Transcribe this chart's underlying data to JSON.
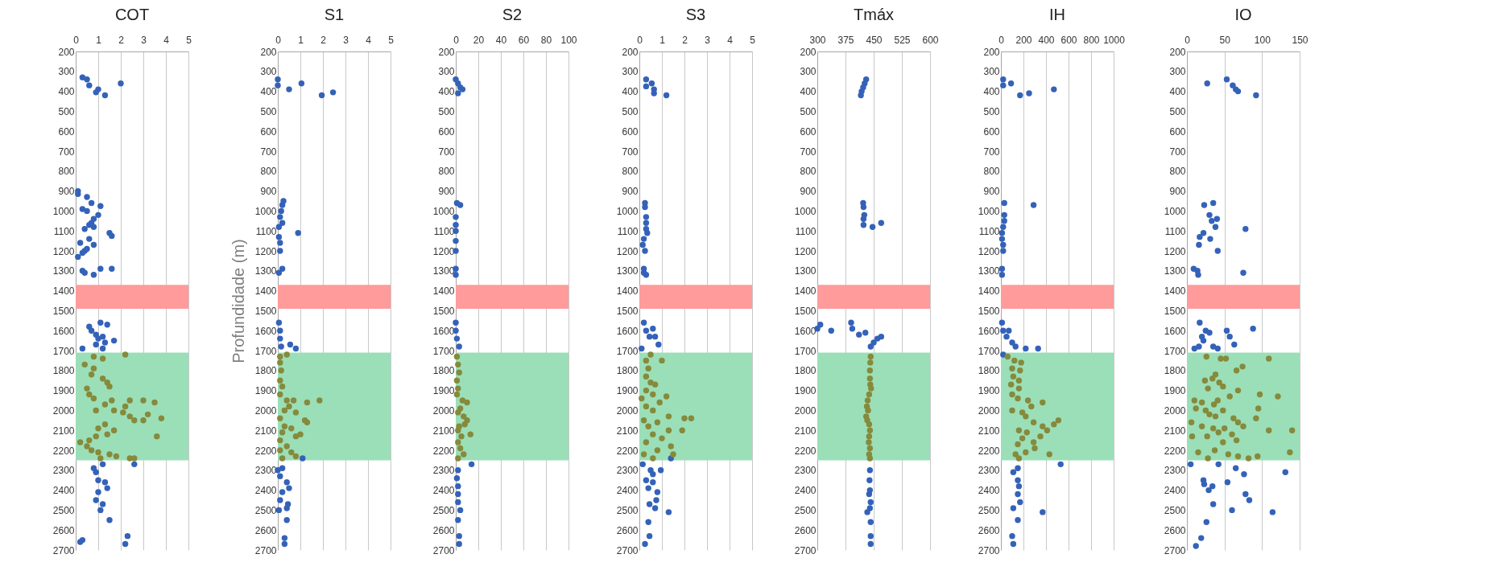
{
  "chart_data": [
    {
      "type": "scatter",
      "title": "COT",
      "xlim": [
        0,
        5
      ],
      "xticks": [
        0,
        1,
        2,
        3,
        4,
        5
      ],
      "ylim": [
        2700,
        200
      ],
      "yticks": [
        200,
        300,
        400,
        500,
        600,
        700,
        800,
        900,
        1000,
        1100,
        1200,
        1300,
        1400,
        1500,
        1600,
        1700,
        1800,
        1900,
        2000,
        2100,
        2200,
        2300,
        2400,
        2500,
        2600,
        2700
      ],
      "grid": "x",
      "marker": "circle",
      "bands": [
        {
          "axis": "y",
          "from": 1370,
          "to": 1490,
          "color": "#ff9b9b"
        },
        {
          "axis": "y",
          "from": 1710,
          "to": 2250,
          "color": "#9bdfb8"
        }
      ],
      "series": [
        {
          "color": "#3462b8",
          "x": [
            0.3,
            0.5,
            0.6,
            2.0,
            1.0,
            0.9,
            1.3,
            0.1,
            0.1,
            0.5,
            0.7,
            1.1,
            0.3,
            0.5,
            1.0,
            0.8,
            0.7,
            0.6,
            0.8,
            0.4,
            1.5,
            1.6,
            0.6,
            0.2,
            0.8,
            0.5,
            0.4,
            0.3,
            0.1,
            0.3,
            0.4,
            1.1,
            1.6,
            0.8,
            1.1,
            1.4,
            0.6,
            0.7,
            0.9,
            1.2,
            1.0,
            1.3,
            1.7,
            0.9,
            0.3,
            1.2,
            1.2,
            2.6,
            0.8,
            0.9,
            1.0,
            1.3,
            1.4,
            1.0,
            0.9,
            1.2,
            1.1,
            1.5,
            0.3,
            0.2,
            2.3,
            2.2
          ],
          "values": [
            330,
            340,
            370,
            360,
            390,
            405,
            420,
            900,
            915,
            930,
            960,
            975,
            990,
            1000,
            1020,
            1040,
            1060,
            1070,
            1080,
            1090,
            1110,
            1125,
            1140,
            1160,
            1170,
            1190,
            1200,
            1210,
            1230,
            1300,
            1310,
            1290,
            1290,
            1320,
            1560,
            1570,
            1580,
            1600,
            1620,
            1630,
            1640,
            1660,
            1650,
            1670,
            1690,
            1690,
            2270,
            2270,
            2290,
            2310,
            2350,
            2360,
            2390,
            2410,
            2450,
            2470,
            2500,
            2550,
            2650,
            2660,
            2630,
            2670
          ]
        },
        {
          "color": "#858a3c",
          "x": [
            0.8,
            2.2,
            1.2,
            0.4,
            0.8,
            0.7,
            1.2,
            1.4,
            1.5,
            0.5,
            0.6,
            0.8,
            1.6,
            2.4,
            3.0,
            3.5,
            1.3,
            2.2,
            0.9,
            1.7,
            2.1,
            2.4,
            3.2,
            3.8,
            3.0,
            2.6,
            1.3,
            1.0,
            1.7,
            1.4,
            3.6,
            0.9,
            0.6,
            0.2,
            0.5,
            0.7,
            1.0,
            1.5,
            1.8,
            2.4,
            2.6,
            1.1
          ],
          "values": [
            1730,
            1720,
            1740,
            1770,
            1790,
            1820,
            1840,
            1860,
            1880,
            1890,
            1920,
            1940,
            1950,
            1950,
            1950,
            1960,
            1970,
            1980,
            2000,
            2000,
            2010,
            2030,
            2020,
            2040,
            2050,
            2050,
            2070,
            2090,
            2100,
            2120,
            2130,
            2130,
            2150,
            2160,
            2180,
            2200,
            2210,
            2220,
            2230,
            2240,
            2240,
            2240
          ]
        }
      ]
    },
    {
      "type": "scatter",
      "title": "S1",
      "ylabel": "Profundidade (m)",
      "xlim": [
        0,
        5
      ],
      "xticks": [
        0,
        1,
        2,
        3,
        4,
        5
      ],
      "ylim": [
        2700,
        200
      ],
      "yticks": [
        200,
        300,
        400,
        500,
        600,
        700,
        800,
        900,
        1000,
        1100,
        1200,
        1300,
        1400,
        1500,
        1600,
        1700,
        1800,
        1900,
        2000,
        2100,
        2200,
        2300,
        2400,
        2500,
        2600,
        2700
      ],
      "grid": "x",
      "marker": "circle",
      "bands": [
        {
          "axis": "y",
          "from": 1370,
          "to": 1490,
          "color": "#ff9b9b"
        },
        {
          "axis": "y",
          "from": 1710,
          "to": 2250,
          "color": "#9bdfb8"
        }
      ],
      "series": [
        {
          "color": "#3462b8",
          "x": [
            0,
            0,
            1.05,
            0.5,
            1.95,
            2.45,
            0.25,
            0.2,
            0.15,
            0.1,
            0.2,
            0.05,
            0.9,
            0.05,
            0.1,
            0.1,
            0.2,
            0.05,
            0.05,
            0.1,
            0.1,
            0.15,
            0.55,
            0.8,
            0,
            0.1,
            0.2,
            0.4,
            0.5,
            0.2,
            0.1,
            0.45,
            0.4,
            0.05,
            0.4,
            0.3,
            0.3,
            1.1
          ],
          "values": [
            340,
            370,
            360,
            390,
            420,
            405,
            950,
            970,
            1000,
            1030,
            1060,
            1080,
            1110,
            1130,
            1160,
            1200,
            1290,
            1310,
            1560,
            1600,
            1640,
            1680,
            1670,
            1690,
            2300,
            2330,
            2290,
            2360,
            2390,
            2410,
            2450,
            2470,
            2490,
            2500,
            2550,
            2640,
            2670,
            2240
          ]
        },
        {
          "color": "#858a3c",
          "x": [
            0.1,
            0.4,
            0.1,
            0.15,
            0.1,
            0.2,
            0.1,
            0.4,
            0.7,
            1.3,
            1.85,
            0.5,
            0.8,
            0.3,
            0.1,
            1.2,
            1.3,
            0.3,
            0.6,
            0.2,
            0.8,
            1.0,
            0.1,
            0.4,
            0.6,
            0.8,
            0.2,
            0.1
          ],
          "values": [
            1730,
            1720,
            1760,
            1800,
            1850,
            1880,
            1920,
            1950,
            1950,
            1960,
            1950,
            1980,
            2010,
            2000,
            2040,
            2050,
            2060,
            2080,
            2090,
            2110,
            2130,
            2120,
            2150,
            2180,
            2210,
            2230,
            2240,
            2200
          ]
        }
      ]
    },
    {
      "type": "scatter",
      "title": "S2",
      "xlim": [
        0,
        100
      ],
      "xticks": [
        0,
        20,
        40,
        60,
        80,
        100
      ],
      "ylim": [
        2700,
        200
      ],
      "yticks": [
        200,
        300,
        400,
        500,
        600,
        700,
        800,
        900,
        1000,
        1100,
        1200,
        1300,
        1400,
        1500,
        1600,
        1700,
        1800,
        1900,
        2000,
        2100,
        2200,
        2300,
        2400,
        2500,
        2600,
        2700
      ],
      "grid": "x",
      "marker": "circle",
      "bands": [
        {
          "axis": "y",
          "from": 1370,
          "to": 1490,
          "color": "#ff9b9b"
        },
        {
          "axis": "y",
          "from": 1710,
          "to": 2250,
          "color": "#9bdfb8"
        }
      ],
      "series": [
        {
          "color": "#3462b8",
          "x": [
            0,
            2,
            4,
            6,
            2,
            1,
            4,
            0,
            0,
            0,
            0,
            0,
            0,
            0,
            0,
            0,
            1,
            3,
            14,
            2,
            1,
            2,
            2,
            2,
            4,
            2,
            3,
            3
          ],
          "values": [
            340,
            360,
            380,
            390,
            410,
            960,
            970,
            1030,
            1070,
            1100,
            1150,
            1200,
            1290,
            1320,
            1560,
            1600,
            1640,
            1680,
            2270,
            2300,
            2340,
            2380,
            2420,
            2460,
            2500,
            2550,
            2630,
            2670
          ]
        },
        {
          "color": "#858a3c",
          "x": [
            1,
            2,
            3,
            1,
            2,
            1,
            6,
            10,
            4,
            2,
            7,
            10,
            8,
            3,
            2,
            13,
            5,
            2,
            4,
            7,
            2
          ],
          "values": [
            1730,
            1770,
            1810,
            1850,
            1890,
            1920,
            1950,
            1960,
            1990,
            2010,
            2030,
            2050,
            2070,
            2080,
            2100,
            2120,
            2130,
            2160,
            2190,
            2220,
            2240
          ]
        }
      ]
    },
    {
      "type": "scatter",
      "title": "S3",
      "xlim": [
        0,
        5
      ],
      "xticks": [
        0,
        1,
        2,
        3,
        4,
        5
      ],
      "ylim": [
        2700,
        200
      ],
      "yticks": [
        200,
        300,
        400,
        500,
        600,
        700,
        800,
        900,
        1000,
        1100,
        1200,
        1300,
        1400,
        1500,
        1600,
        1700,
        1800,
        1900,
        2000,
        2100,
        2200,
        2300,
        2400,
        2500,
        2600,
        2700
      ],
      "grid": "x",
      "marker": "circle",
      "bands": [
        {
          "axis": "y",
          "from": 1370,
          "to": 1490,
          "color": "#ff9b9b"
        },
        {
          "axis": "y",
          "from": 1710,
          "to": 2250,
          "color": "#9bdfb8"
        }
      ],
      "series": [
        {
          "color": "#3462b8",
          "x": [
            0.3,
            0.55,
            0.3,
            0.65,
            0.65,
            1.2,
            0.25,
            0.25,
            0.3,
            0.3,
            0.3,
            0.35,
            0.2,
            0.15,
            0.25,
            0.2,
            0.3,
            0.2,
            0.2,
            0.3,
            0.6,
            0.45,
            0.7,
            0.85,
            0.1,
            0.15,
            0.5,
            0.6,
            0.95,
            0.3,
            0.6,
            0.4,
            0.8,
            0.75,
            0.45,
            0.7,
            1.3,
            0.4,
            0.45,
            0.25,
            1.4
          ],
          "values": [
            340,
            360,
            375,
            390,
            410,
            420,
            960,
            980,
            1030,
            1060,
            1090,
            1110,
            1140,
            1170,
            1200,
            1290,
            1320,
            1310,
            1560,
            1600,
            1590,
            1630,
            1630,
            1670,
            1690,
            2270,
            2300,
            2320,
            2300,
            2350,
            2360,
            2390,
            2410,
            2450,
            2470,
            2490,
            2510,
            2560,
            2630,
            2670,
            2240
          ]
        },
        {
          "color": "#858a3c",
          "x": [
            0.5,
            0.3,
            1.0,
            0.4,
            0.3,
            0.5,
            0.7,
            0.3,
            0.6,
            1.2,
            0.1,
            0.9,
            0.3,
            0.6,
            1.3,
            0.2,
            2.0,
            2.3,
            0.8,
            0.4,
            1.3,
            1.9,
            0.6,
            1.0,
            0.3,
            1.4,
            0.8,
            1.5,
            0.2,
            0.6
          ],
          "values": [
            1720,
            1750,
            1750,
            1790,
            1830,
            1860,
            1870,
            1900,
            1920,
            1930,
            1940,
            1960,
            1980,
            2000,
            2030,
            2050,
            2040,
            2040,
            2060,
            2080,
            2100,
            2100,
            2120,
            2140,
            2160,
            2180,
            2200,
            2220,
            2220,
            2240
          ]
        }
      ]
    },
    {
      "type": "scatter",
      "title": "Tmáx",
      "xlim": [
        300,
        600
      ],
      "xticks": [
        300,
        375,
        450,
        525,
        600
      ],
      "ylim": [
        2700,
        200
      ],
      "yticks": [
        200,
        300,
        400,
        500,
        600,
        700,
        800,
        900,
        1000,
        1100,
        1200,
        1300,
        1400,
        1500,
        1600,
        1700,
        1800,
        1900,
        2000,
        2100,
        2200,
        2300,
        2400,
        2500,
        2600,
        2700
      ],
      "grid": "x",
      "marker": "circle",
      "bands": [
        {
          "axis": "y",
          "from": 1370,
          "to": 1490,
          "color": "#ff9b9b"
        },
        {
          "axis": "y",
          "from": 1710,
          "to": 2250,
          "color": "#9bdfb8"
        }
      ],
      "series": [
        {
          "color": "#3462b8",
          "x": [
            430,
            426,
            422,
            418,
            416,
            422,
            423,
            425,
            423,
            423,
            447,
            470,
            300,
            308,
            337,
            390,
            393,
            411,
            428,
            470,
            460,
            450,
            442,
            440,
            439,
            440,
            438,
            442,
            440,
            433,
            442,
            442,
            442
          ],
          "values": [
            340,
            360,
            380,
            400,
            420,
            960,
            980,
            1020,
            1040,
            1070,
            1080,
            1060,
            1590,
            1570,
            1600,
            1560,
            1590,
            1620,
            1610,
            1630,
            1640,
            1660,
            1680,
            2300,
            2350,
            2400,
            2420,
            2460,
            2490,
            2510,
            2560,
            2630,
            2670
          ]
        },
        {
          "color": "#858a3c",
          "x": [
            442,
            441,
            440,
            440,
            441,
            443,
            438,
            434,
            432,
            435,
            430,
            433,
            438,
            440,
            438,
            437,
            440,
            438,
            440
          ],
          "values": [
            1730,
            1760,
            1800,
            1840,
            1870,
            1890,
            1920,
            1950,
            1980,
            2000,
            2030,
            2050,
            2070,
            2100,
            2130,
            2160,
            2190,
            2220,
            2240
          ]
        }
      ]
    },
    {
      "type": "scatter",
      "title": "IH",
      "xlim": [
        0,
        1000
      ],
      "xticks": [
        0,
        200,
        400,
        600,
        800,
        1000
      ],
      "ylim": [
        2700,
        200
      ],
      "yticks": [
        200,
        300,
        400,
        500,
        600,
        700,
        800,
        900,
        1000,
        1100,
        1200,
        1300,
        1400,
        1500,
        1600,
        1700,
        1800,
        1900,
        2000,
        2100,
        2200,
        2300,
        2400,
        2500,
        2600,
        2700
      ],
      "grid": "x",
      "marker": "circle",
      "bands": [
        {
          "axis": "y",
          "from": 1370,
          "to": 1490,
          "color": "#ff9b9b"
        },
        {
          "axis": "y",
          "from": 1710,
          "to": 2250,
          "color": "#9bdfb8"
        }
      ],
      "series": [
        {
          "color": "#3462b8",
          "x": [
            20,
            20,
            90,
            170,
            250,
            470,
            30,
            290,
            30,
            30,
            20,
            10,
            10,
            20,
            20,
            10,
            10,
            10,
            20,
            70,
            50,
            100,
            130,
            220,
            330,
            20,
            530,
            150,
            110,
            150,
            160,
            150,
            170,
            110,
            370,
            150,
            100,
            110
          ],
          "values": [
            340,
            370,
            360,
            420,
            410,
            390,
            960,
            970,
            1020,
            1050,
            1080,
            1110,
            1140,
            1170,
            1200,
            1290,
            1320,
            1560,
            1600,
            1600,
            1630,
            1660,
            1680,
            1690,
            1690,
            1720,
            2270,
            2290,
            2310,
            2350,
            2380,
            2420,
            2460,
            2490,
            2510,
            2550,
            2630,
            2670
          ]
        },
        {
          "color": "#858a3c",
          "x": [
            60,
            120,
            180,
            100,
            170,
            110,
            160,
            90,
            160,
            100,
            150,
            240,
            370,
            270,
            100,
            190,
            220,
            290,
            510,
            470,
            370,
            410,
            160,
            230,
            350,
            190,
            290,
            150,
            300,
            430,
            220,
            130,
            160
          ],
          "values": [
            1730,
            1750,
            1760,
            1790,
            1800,
            1830,
            1850,
            1870,
            1890,
            1920,
            1940,
            1950,
            1960,
            1980,
            2000,
            2010,
            2030,
            2060,
            2050,
            2070,
            2080,
            2100,
            2100,
            2110,
            2130,
            2140,
            2160,
            2170,
            2190,
            2220,
            2210,
            2220,
            2240
          ]
        }
      ]
    },
    {
      "type": "scatter",
      "title": "IO",
      "xlim": [
        0,
        150
      ],
      "xticks": [
        0,
        50,
        100,
        150
      ],
      "ylim": [
        2700,
        200
      ],
      "yticks": [
        200,
        300,
        400,
        500,
        600,
        700,
        800,
        900,
        1000,
        1100,
        1200,
        1300,
        1400,
        1500,
        1600,
        1700,
        1800,
        1900,
        2000,
        2100,
        2200,
        2300,
        2400,
        2500,
        2600,
        2700
      ],
      "grid": "x",
      "marker": "circle",
      "bands": [
        {
          "axis": "y",
          "from": 1370,
          "to": 1490,
          "color": "#ff9b9b"
        },
        {
          "axis": "y",
          "from": 1710,
          "to": 2250,
          "color": "#9bdfb8"
        }
      ],
      "series": [
        {
          "color": "#3462b8",
          "x": [
            27,
            53,
            61,
            65,
            68,
            92,
            23,
            35,
            30,
            33,
            40,
            38,
            78,
            22,
            17,
            31,
            16,
            41,
            9,
            14,
            15,
            75,
            17,
            25,
            30,
            20,
            22,
            16,
            10,
            53,
            57,
            63,
            88,
            35,
            41,
            5,
            42,
            65,
            76,
            131,
            22,
            23,
            34,
            29,
            54,
            78,
            83,
            35,
            60,
            114,
            26,
            19,
            12
          ],
          "values": [
            360,
            340,
            370,
            390,
            400,
            420,
            970,
            960,
            1020,
            1050,
            1040,
            1080,
            1090,
            1110,
            1130,
            1140,
            1170,
            1200,
            1290,
            1300,
            1320,
            1310,
            1560,
            1600,
            1610,
            1630,
            1650,
            1680,
            1690,
            1600,
            1630,
            1670,
            1590,
            1680,
            1690,
            2270,
            2270,
            2290,
            2320,
            2310,
            2350,
            2370,
            2380,
            2400,
            2360,
            2420,
            2450,
            2470,
            2500,
            2510,
            2560,
            2640,
            2680
          ]
        },
        {
          "color": "#858a3c",
          "x": [
            26,
            45,
            52,
            109,
            74,
            66,
            38,
            34,
            24,
            43,
            28,
            48,
            68,
            57,
            97,
            121,
            10,
            20,
            41,
            36,
            12,
            25,
            48,
            95,
            30,
            38,
            62,
            92,
            68,
            6,
            20,
            35,
            50,
            75,
            109,
            140,
            42,
            7,
            27,
            60,
            66,
            48,
            15,
            37,
            55,
            68,
            82,
            94,
            137,
            28
          ],
          "values": [
            1730,
            1740,
            1740,
            1740,
            1780,
            1800,
            1820,
            1840,
            1850,
            1860,
            1890,
            1880,
            1900,
            1930,
            1920,
            1930,
            1950,
            1960,
            1950,
            1970,
            1990,
            2000,
            2000,
            1990,
            2020,
            2030,
            2040,
            2040,
            2060,
            2060,
            2080,
            2090,
            2090,
            2080,
            2100,
            2100,
            2110,
            2130,
            2130,
            2120,
            2150,
            2160,
            2210,
            2200,
            2220,
            2230,
            2240,
            2230,
            2210,
            2240
          ]
        }
      ]
    }
  ]
}
